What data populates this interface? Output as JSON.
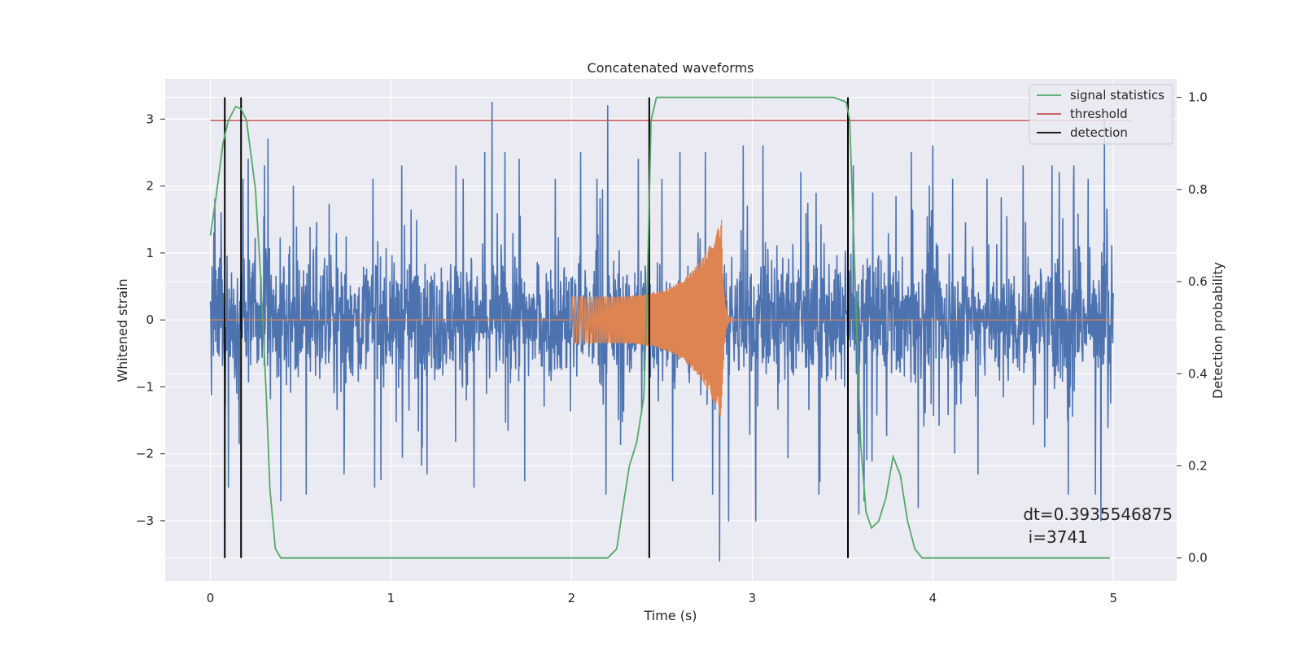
{
  "chart_data": {
    "type": "line",
    "title": "Concatenated waveforms",
    "xlabel": "Time (s)",
    "ylabel_left": "Whitened strain",
    "ylabel_right": "Detection probability",
    "xlim": [
      -0.25,
      5.35
    ],
    "ylim_left": [
      -3.9,
      3.6
    ],
    "ylim_right": [
      -0.05,
      1.04
    ],
    "xticks": [
      0,
      1,
      2,
      3,
      4,
      5
    ],
    "xtick_labels": [
      "0",
      "1",
      "2",
      "3",
      "4",
      "5"
    ],
    "yticks_left": [
      -3,
      -2,
      -1,
      0,
      1,
      2,
      3
    ],
    "ytick_labels_left": [
      "−3",
      "−2",
      "−1",
      "0",
      "1",
      "2",
      "3"
    ],
    "yticks_right": [
      0.0,
      0.2,
      0.4,
      0.6,
      0.8,
      1.0
    ],
    "ytick_labels_right": [
      "0.0",
      "0.2",
      "0.4",
      "0.6",
      "0.8",
      "1.0"
    ],
    "grid": true,
    "legend_position": "top-right",
    "legend": [
      "signal statistics",
      "threshold",
      "detection"
    ],
    "colors": {
      "strain": "#4c72b0",
      "template": "#dd8452",
      "signal_statistics": "#55a868",
      "threshold": "#c44e52",
      "detection": "#000000",
      "axes_bg": "#eaeaf2",
      "grid": "#ffffff"
    },
    "strain": {
      "x_range": [
        0,
        5
      ],
      "noise_envelope": 0.6,
      "peak_values": [
        {
          "x": 0.02,
          "y": 1.3
        },
        {
          "x": 0.06,
          "y": 1.6
        },
        {
          "x": 0.1,
          "y": -2.5
        },
        {
          "x": 0.18,
          "y": 2.1
        },
        {
          "x": 0.21,
          "y": 2.4
        },
        {
          "x": 0.3,
          "y": 2.3
        },
        {
          "x": 0.32,
          "y": 2.7
        },
        {
          "x": 0.39,
          "y": -2.7
        },
        {
          "x": 0.46,
          "y": 2.0
        },
        {
          "x": 0.53,
          "y": -2.6
        },
        {
          "x": 0.74,
          "y": -2.3
        },
        {
          "x": 0.9,
          "y": 2.1
        },
        {
          "x": 0.91,
          "y": -2.5
        },
        {
          "x": 1.06,
          "y": 2.3
        },
        {
          "x": 1.2,
          "y": -2.3
        },
        {
          "x": 1.36,
          "y": 2.3
        },
        {
          "x": 1.4,
          "y": 2.1
        },
        {
          "x": 1.46,
          "y": -2.5
        },
        {
          "x": 1.52,
          "y": 2.5
        },
        {
          "x": 1.56,
          "y": 3.25
        },
        {
          "x": 1.63,
          "y": 2.5
        },
        {
          "x": 1.71,
          "y": 2.4
        },
        {
          "x": 1.74,
          "y": -2.4
        },
        {
          "x": 1.91,
          "y": 2.1
        },
        {
          "x": 2.05,
          "y": 2.5
        },
        {
          "x": 2.14,
          "y": 2.1
        },
        {
          "x": 2.19,
          "y": -2.6
        },
        {
          "x": 2.2,
          "y": 3.2
        },
        {
          "x": 2.37,
          "y": 2.4
        },
        {
          "x": 2.5,
          "y": 2.1
        },
        {
          "x": 2.56,
          "y": -2.4
        },
        {
          "x": 2.6,
          "y": 2.5
        },
        {
          "x": 2.74,
          "y": 2.5
        },
        {
          "x": 2.78,
          "y": -2.6
        },
        {
          "x": 2.82,
          "y": -3.6
        },
        {
          "x": 2.87,
          "y": -3.0
        },
        {
          "x": 2.95,
          "y": 2.6
        },
        {
          "x": 3.02,
          "y": -3.0
        },
        {
          "x": 3.06,
          "y": 2.6
        },
        {
          "x": 3.27,
          "y": 2.2
        },
        {
          "x": 3.37,
          "y": -2.6
        },
        {
          "x": 3.56,
          "y": 2.3
        },
        {
          "x": 3.59,
          "y": -2.9
        },
        {
          "x": 3.62,
          "y": -2.7
        },
        {
          "x": 3.88,
          "y": 2.5
        },
        {
          "x": 3.92,
          "y": -2.8
        },
        {
          "x": 3.98,
          "y": 2.0
        },
        {
          "x": 4.0,
          "y": 2.6
        },
        {
          "x": 4.11,
          "y": 2.1
        },
        {
          "x": 4.25,
          "y": -2.3
        },
        {
          "x": 4.3,
          "y": 2.1
        },
        {
          "x": 4.5,
          "y": 2.3
        },
        {
          "x": 4.66,
          "y": 2.3
        },
        {
          "x": 4.7,
          "y": 2.2
        },
        {
          "x": 4.75,
          "y": -2.6
        },
        {
          "x": 4.78,
          "y": 2.3
        },
        {
          "x": 4.86,
          "y": 2.1
        },
        {
          "x": 4.9,
          "y": -2.6
        },
        {
          "x": 4.93,
          "y": -3.0
        },
        {
          "x": 4.95,
          "y": 3.0
        }
      ]
    },
    "template": {
      "x_start": 2.0,
      "x_end": 2.85,
      "start_amplitude": 0.35,
      "peak_amplitude": 1.5,
      "peak_time": 2.83,
      "ringdown_end": 3.0
    },
    "signal_statistics": {
      "x": [
        0.0,
        0.03,
        0.07,
        0.1,
        0.14,
        0.17,
        0.2,
        0.25,
        0.28,
        0.31,
        0.33,
        0.36,
        0.39,
        0.42,
        1.0,
        1.5,
        2.0,
        2.2,
        2.25,
        2.28,
        2.32,
        2.36,
        2.4,
        2.42,
        2.44,
        2.47,
        2.55,
        3.0,
        3.45,
        3.52,
        3.54,
        3.57,
        3.6,
        3.63,
        3.66,
        3.7,
        3.74,
        3.78,
        3.82,
        3.86,
        3.9,
        3.94,
        4.0,
        4.98
      ],
      "y": [
        0.7,
        0.78,
        0.9,
        0.95,
        0.98,
        0.975,
        0.95,
        0.8,
        0.6,
        0.35,
        0.15,
        0.02,
        0.0,
        0.0,
        0.0,
        0.0,
        0.0,
        0.0,
        0.02,
        0.1,
        0.2,
        0.25,
        0.35,
        0.6,
        0.95,
        1.0,
        1.0,
        1.0,
        1.0,
        0.99,
        0.95,
        0.6,
        0.25,
        0.1,
        0.065,
        0.08,
        0.13,
        0.22,
        0.18,
        0.08,
        0.02,
        0.0,
        0.0,
        0.0
      ]
    },
    "threshold": {
      "value": 0.95,
      "x_range": [
        0,
        5.1
      ]
    },
    "detections": [
      0.08,
      0.17,
      2.43,
      3.53
    ],
    "annotation": {
      "line1": "dt=0.3935546875",
      "line2": " i=3741",
      "x": 4.5,
      "y": 0.095
    }
  }
}
